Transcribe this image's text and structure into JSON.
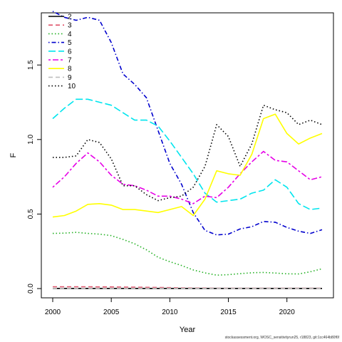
{
  "footnote": "stockassessment.org, WOSC_sensitivityrun25, r18823, git:1cc464b80f6f",
  "chart_data": {
    "type": "line",
    "title": "",
    "xlabel": "Year",
    "ylabel": "F",
    "xlim": [
      2000,
      2023
    ],
    "ylim": [
      0,
      1.85
    ],
    "x_ticks": [
      2000,
      2005,
      2010,
      2015,
      2020
    ],
    "y_ticks": [
      0.0,
      0.5,
      1.0,
      1.5
    ],
    "y_tick_labels": [
      "0.0",
      "0.5",
      "1.0",
      "1.5"
    ],
    "legend_position": "top-left",
    "x": [
      2000,
      2001,
      2002,
      2003,
      2004,
      2005,
      2006,
      2007,
      2008,
      2009,
      2010,
      2011,
      2012,
      2013,
      2014,
      2015,
      2016,
      2017,
      2018,
      2019,
      2020,
      2021,
      2022,
      2023
    ],
    "series": [
      {
        "name": "2",
        "color": "#000000",
        "dash": "solid",
        "values": [
          0.001,
          0.001,
          0.001,
          0.001,
          0.001,
          0.001,
          0.001,
          0.001,
          0.001,
          0.001,
          0.001,
          0.001,
          0.001,
          0.001,
          0.001,
          0.001,
          0.001,
          0.001,
          0.001,
          0.001,
          0.001,
          0.001,
          0.001,
          0.001
        ]
      },
      {
        "name": "3",
        "color": "#DF536B",
        "dash": "dashed",
        "values": [
          0.012,
          0.012,
          0.012,
          0.012,
          0.011,
          0.011,
          0.01,
          0.009,
          0.008,
          0.007,
          0.006,
          0.005,
          0.004,
          0.004,
          0.003,
          0.003,
          0.003,
          0.003,
          0.003,
          0.003,
          0.003,
          0.003,
          0.003,
          0.003
        ]
      },
      {
        "name": "4",
        "color": "#22B022",
        "dash": "dotted",
        "values": [
          0.37,
          0.372,
          0.377,
          0.37,
          0.365,
          0.355,
          0.33,
          0.3,
          0.26,
          0.21,
          0.18,
          0.155,
          0.125,
          0.105,
          0.09,
          0.093,
          0.1,
          0.106,
          0.108,
          0.104,
          0.099,
          0.098,
          0.113,
          0.133
        ]
      },
      {
        "name": "5",
        "color": "#0000CD",
        "dash": "dotdash",
        "values": [
          1.86,
          1.82,
          1.8,
          1.82,
          1.8,
          1.65,
          1.44,
          1.37,
          1.28,
          1.06,
          0.84,
          0.7,
          0.51,
          0.39,
          0.36,
          0.365,
          0.4,
          0.415,
          0.45,
          0.445,
          0.41,
          0.385,
          0.37,
          0.395
        ]
      },
      {
        "name": "6",
        "color": "#00E5EE",
        "dash": "longdash",
        "values": [
          1.14,
          1.21,
          1.27,
          1.27,
          1.25,
          1.23,
          1.18,
          1.13,
          1.13,
          1.09,
          0.99,
          0.88,
          0.77,
          0.64,
          0.58,
          0.59,
          0.6,
          0.64,
          0.66,
          0.73,
          0.68,
          0.57,
          0.53,
          0.54
        ]
      },
      {
        "name": "7",
        "color": "#E600E6",
        "dash": "twodash",
        "values": [
          0.68,
          0.75,
          0.84,
          0.91,
          0.85,
          0.76,
          0.7,
          0.69,
          0.66,
          0.62,
          0.62,
          0.6,
          0.57,
          0.62,
          0.61,
          0.68,
          0.77,
          0.85,
          0.92,
          0.86,
          0.85,
          0.79,
          0.73,
          0.75
        ]
      },
      {
        "name": "8",
        "color": "#FFFF00",
        "dash": "solid",
        "values": [
          0.48,
          0.49,
          0.52,
          0.565,
          0.57,
          0.56,
          0.53,
          0.53,
          0.52,
          0.51,
          0.53,
          0.55,
          0.49,
          0.6,
          0.79,
          0.77,
          0.76,
          0.9,
          1.14,
          1.17,
          1.04,
          0.97,
          1.01,
          1.04
        ]
      },
      {
        "name": "9",
        "color": "#BEBEBE",
        "dash": "dashed",
        "values": [
          0.002,
          0.002,
          0.002,
          0.002,
          0.002,
          0.002,
          0.002,
          0.002,
          0.002,
          0.002,
          0.002,
          0.002,
          0.002,
          0.002,
          0.002,
          0.002,
          0.002,
          0.002,
          0.002,
          0.002,
          0.002,
          0.002,
          0.002,
          0.002
        ]
      },
      {
        "name": "10",
        "color": "#000000",
        "dash": "dotted",
        "values": [
          0.88,
          0.88,
          0.89,
          1.0,
          0.98,
          0.87,
          0.69,
          0.69,
          0.63,
          0.59,
          0.61,
          0.62,
          0.68,
          0.82,
          1.1,
          1.02,
          0.82,
          0.97,
          1.23,
          1.2,
          1.18,
          1.1,
          1.13,
          1.1
        ]
      }
    ]
  }
}
